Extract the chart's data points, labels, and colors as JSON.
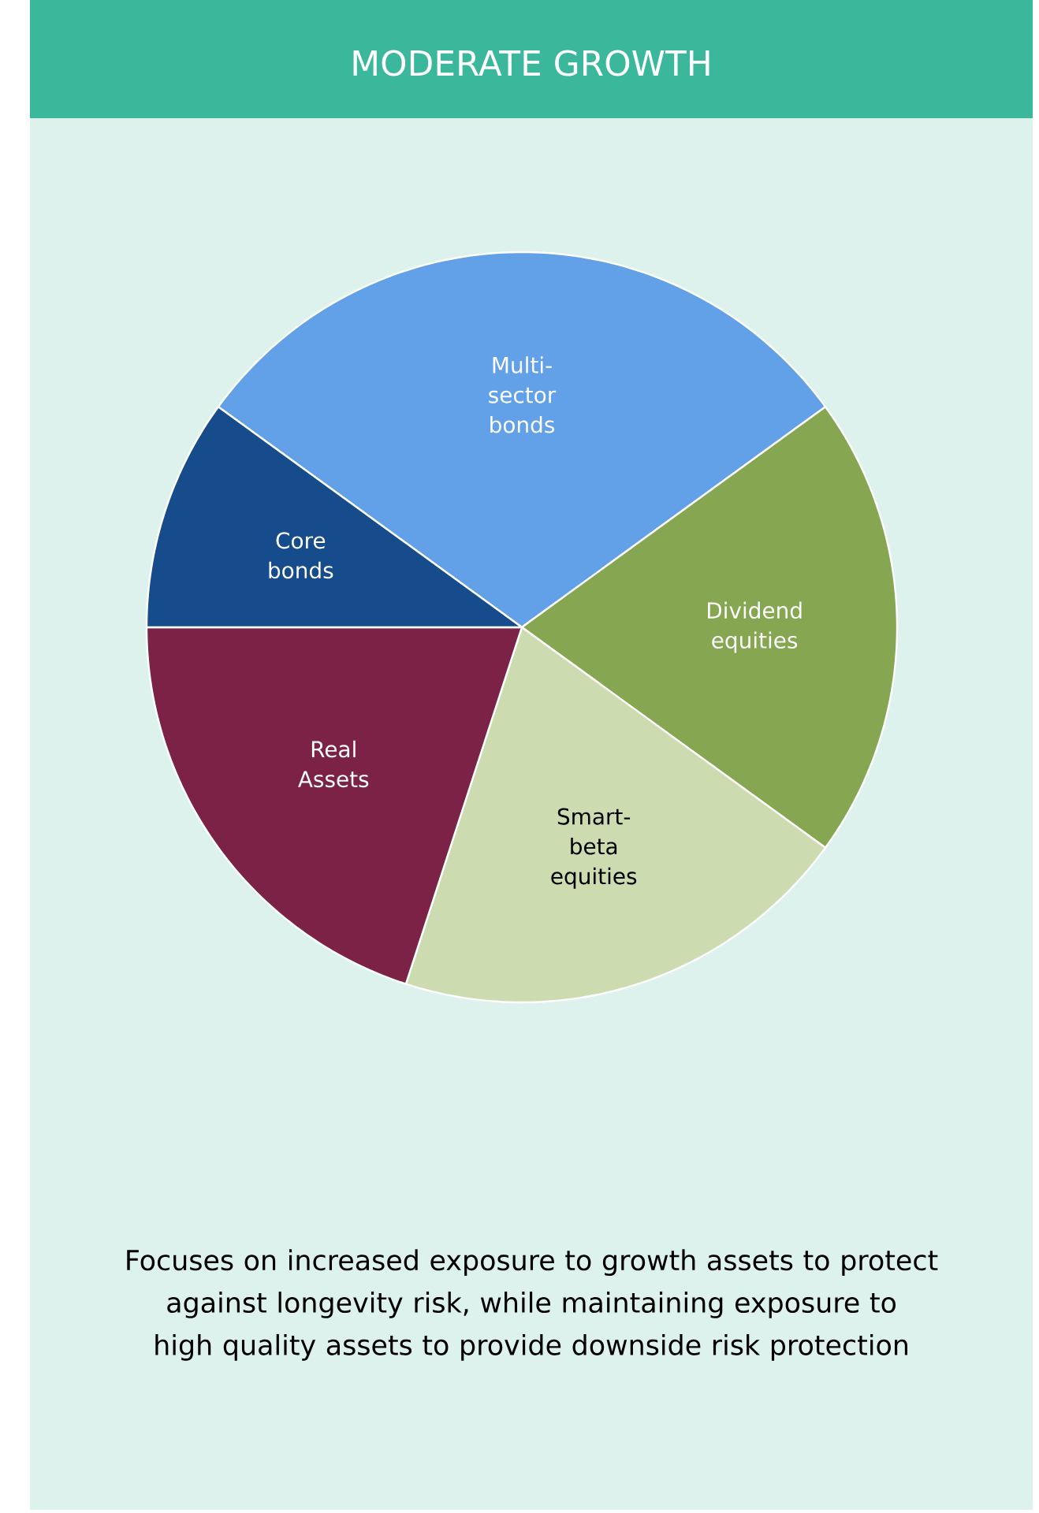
{
  "chart_data": {
    "type": "pie",
    "title": "MODERATE GROWTH",
    "categories": [
      "Multi-sector bonds",
      "Dividend equities",
      "Smart-beta equities",
      "Real Assets",
      "Core bonds"
    ],
    "values": [
      30,
      20,
      20,
      20,
      10
    ],
    "colors": [
      "#62a0e8",
      "#86a651",
      "#cddbb0",
      "#7b2246",
      "#174c8c"
    ],
    "annotations": [
      "Focuses on increased exposure to growth assets to protect against longevity risk, while maintaining exposure to high quality assets to provide downside risk protection"
    ]
  }
}
